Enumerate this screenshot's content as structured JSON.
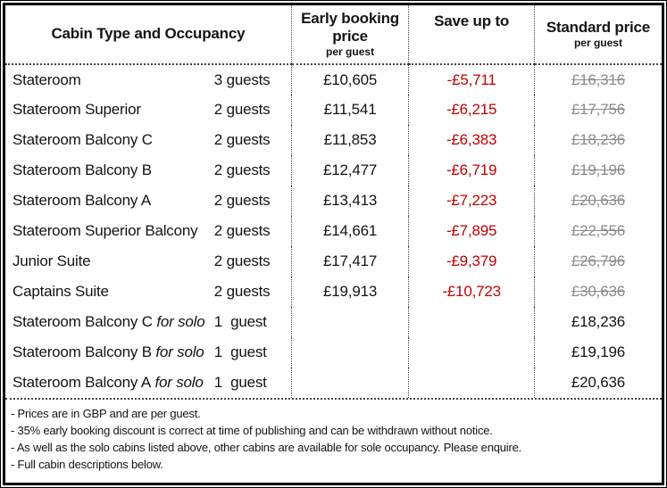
{
  "header": {
    "cabin_col": "Cabin Type and Occupancy",
    "early_col_line1": "Early booking",
    "early_col_line2": "price",
    "early_col_sub": "per guest",
    "save_col": "Save up to",
    "standard_col": "Standard price",
    "standard_col_sub": "per guest"
  },
  "rows": [
    {
      "cabin": "Stateroom",
      "solo_suffix": "",
      "guests": "3 guests",
      "early_price": "£10,605",
      "save": "-£5,711",
      "standard": "£16,316",
      "standard_struck": true
    },
    {
      "cabin": "Stateroom Superior",
      "solo_suffix": "",
      "guests": "2 guests",
      "early_price": "£11,541",
      "save": "-£6,215",
      "standard": "£17,756",
      "standard_struck": true
    },
    {
      "cabin": "Stateroom Balcony C",
      "solo_suffix": "",
      "guests": "2 guests",
      "early_price": "£11,853",
      "save": "-£6,383",
      "standard": "£18,236",
      "standard_struck": true
    },
    {
      "cabin": "Stateroom Balcony B",
      "solo_suffix": "",
      "guests": "2 guests",
      "early_price": "£12,477",
      "save": "-£6,719",
      "standard": "£19,196",
      "standard_struck": true
    },
    {
      "cabin": "Stateroom Balcony A",
      "solo_suffix": "",
      "guests": "2 guests",
      "early_price": "£13,413",
      "save": "-£7,223",
      "standard": "£20,636",
      "standard_struck": true
    },
    {
      "cabin": "Stateroom Superior Balcony",
      "solo_suffix": "",
      "guests": "2 guests",
      "early_price": "£14,661",
      "save": "-£7,895",
      "standard": "£22,556",
      "standard_struck": true
    },
    {
      "cabin": "Junior Suite",
      "solo_suffix": "",
      "guests": "2 guests",
      "early_price": "£17,417",
      "save": "-£9,379",
      "standard": "£26,796",
      "standard_struck": true
    },
    {
      "cabin": "Captains Suite",
      "solo_suffix": "",
      "guests": "2 guests",
      "early_price": "£19,913",
      "save": "-£10,723",
      "standard": "£30,636",
      "standard_struck": true
    },
    {
      "cabin": "Stateroom Balcony C",
      "solo_suffix": "for solo",
      "guests": "1  guest",
      "early_price": "",
      "save": "",
      "standard": "£18,236",
      "standard_struck": false
    },
    {
      "cabin": "Stateroom Balcony B",
      "solo_suffix": "for solo",
      "guests": "1  guest",
      "early_price": "",
      "save": "",
      "standard": "£19,196",
      "standard_struck": false
    },
    {
      "cabin": "Stateroom Balcony A",
      "solo_suffix": "for solo",
      "guests": "1  guest",
      "early_price": "",
      "save": "",
      "standard": "£20,636",
      "standard_struck": false
    }
  ],
  "notes": [
    "- Prices are in GBP and are per guest.",
    "- 35% early booking discount is correct at time of publishing and can be withdrawn without notice.",
    "- As well as the solo cabins listed above, other cabins are available for sole occupancy. Please enquire.",
    "- Full cabin descriptions below."
  ],
  "colors": {
    "discount_red": "#c00000",
    "struck_gray": "#8a8a8a",
    "border_black": "#000000"
  }
}
